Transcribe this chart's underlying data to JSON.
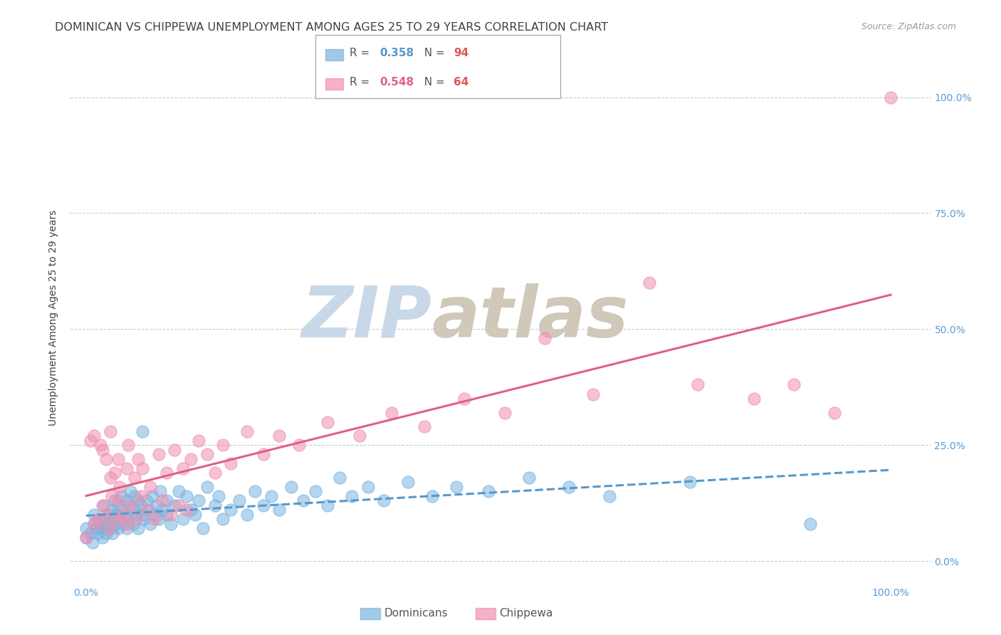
{
  "title": "DOMINICAN VS CHIPPEWA UNEMPLOYMENT AMONG AGES 25 TO 29 YEARS CORRELATION CHART",
  "source": "Source: ZipAtlas.com",
  "ylabel": "Unemployment Among Ages 25 to 29 years",
  "ytick_labels": [
    "0.0%",
    "25.0%",
    "50.0%",
    "75.0%",
    "100.0%"
  ],
  "ytick_values": [
    0.0,
    0.25,
    0.5,
    0.75,
    1.0
  ],
  "xtick_values": [
    0.0,
    0.25,
    0.5,
    0.75,
    1.0
  ],
  "xlim": [
    -0.02,
    1.05
  ],
  "ylim": [
    -0.05,
    1.1
  ],
  "watermark_zip": "ZIP",
  "watermark_atlas": "atlas",
  "dom_R": "0.358",
  "dom_N": "94",
  "chip_R": "0.548",
  "chip_N": "64",
  "dominican_color": "#7ab3e0",
  "chippewa_color": "#f090b0",
  "dom_line_color": "#5599cc",
  "chip_line_color": "#e06080",
  "background_color": "#ffffff",
  "grid_color": "#cccccc",
  "title_color": "#404040",
  "axis_label_color": "#404040",
  "right_tick_color": "#5b9bd5",
  "bottom_tick_color": "#5b9bd5",
  "watermark_zip_color": "#c8d8e8",
  "watermark_atlas_color": "#d0c8b8",
  "title_fontsize": 11.5,
  "source_fontsize": 9,
  "ylabel_fontsize": 10,
  "tick_fontsize": 10,
  "legend_fontsize": 11,
  "dom_label": "Dominicans",
  "chip_label": "Chippewa",
  "dominican_x": [
    0.0,
    0.0,
    0.005,
    0.008,
    0.01,
    0.01,
    0.012,
    0.015,
    0.015,
    0.018,
    0.02,
    0.02,
    0.022,
    0.022,
    0.025,
    0.025,
    0.028,
    0.03,
    0.03,
    0.032,
    0.033,
    0.035,
    0.035,
    0.038,
    0.04,
    0.04,
    0.042,
    0.043,
    0.045,
    0.045,
    0.048,
    0.05,
    0.05,
    0.052,
    0.055,
    0.055,
    0.058,
    0.06,
    0.06,
    0.062,
    0.065,
    0.065,
    0.068,
    0.07,
    0.07,
    0.072,
    0.075,
    0.078,
    0.08,
    0.082,
    0.085,
    0.088,
    0.09,
    0.092,
    0.095,
    0.1,
    0.1,
    0.105,
    0.11,
    0.115,
    0.12,
    0.125,
    0.13,
    0.135,
    0.14,
    0.145,
    0.15,
    0.16,
    0.165,
    0.17,
    0.18,
    0.19,
    0.2,
    0.21,
    0.22,
    0.23,
    0.24,
    0.255,
    0.27,
    0.285,
    0.3,
    0.315,
    0.33,
    0.35,
    0.37,
    0.4,
    0.43,
    0.46,
    0.5,
    0.55,
    0.6,
    0.65,
    0.75,
    0.9
  ],
  "dominican_y": [
    0.05,
    0.07,
    0.06,
    0.04,
    0.08,
    0.1,
    0.07,
    0.06,
    0.09,
    0.08,
    0.07,
    0.05,
    0.09,
    0.12,
    0.08,
    0.06,
    0.1,
    0.07,
    0.09,
    0.11,
    0.06,
    0.13,
    0.08,
    0.1,
    0.07,
    0.12,
    0.09,
    0.14,
    0.08,
    0.11,
    0.1,
    0.07,
    0.13,
    0.09,
    0.12,
    0.15,
    0.08,
    0.11,
    0.14,
    0.1,
    0.13,
    0.07,
    0.12,
    0.1,
    0.28,
    0.09,
    0.13,
    0.11,
    0.08,
    0.14,
    0.1,
    0.12,
    0.09,
    0.15,
    0.11,
    0.1,
    0.13,
    0.08,
    0.12,
    0.15,
    0.09,
    0.14,
    0.11,
    0.1,
    0.13,
    0.07,
    0.16,
    0.12,
    0.14,
    0.09,
    0.11,
    0.13,
    0.1,
    0.15,
    0.12,
    0.14,
    0.11,
    0.16,
    0.13,
    0.15,
    0.12,
    0.18,
    0.14,
    0.16,
    0.13,
    0.17,
    0.14,
    0.16,
    0.15,
    0.18,
    0.16,
    0.14,
    0.17,
    0.08
  ],
  "chippewa_x": [
    0.0,
    0.005,
    0.01,
    0.01,
    0.015,
    0.018,
    0.02,
    0.02,
    0.025,
    0.025,
    0.028,
    0.03,
    0.03,
    0.032,
    0.035,
    0.038,
    0.04,
    0.04,
    0.042,
    0.045,
    0.05,
    0.05,
    0.052,
    0.055,
    0.06,
    0.062,
    0.065,
    0.068,
    0.07,
    0.075,
    0.08,
    0.085,
    0.09,
    0.095,
    0.1,
    0.105,
    0.11,
    0.115,
    0.12,
    0.125,
    0.13,
    0.14,
    0.15,
    0.16,
    0.17,
    0.18,
    0.2,
    0.22,
    0.24,
    0.265,
    0.3,
    0.34,
    0.38,
    0.42,
    0.47,
    0.52,
    0.57,
    0.63,
    0.7,
    0.76,
    0.83,
    0.88,
    0.93,
    1.0
  ],
  "chippewa_y": [
    0.05,
    0.26,
    0.08,
    0.27,
    0.09,
    0.25,
    0.12,
    0.24,
    0.1,
    0.22,
    0.07,
    0.18,
    0.28,
    0.14,
    0.19,
    0.09,
    0.22,
    0.13,
    0.16,
    0.1,
    0.2,
    0.08,
    0.25,
    0.12,
    0.18,
    0.09,
    0.22,
    0.14,
    0.2,
    0.11,
    0.16,
    0.09,
    0.23,
    0.13,
    0.19,
    0.1,
    0.24,
    0.12,
    0.2,
    0.11,
    0.22,
    0.26,
    0.23,
    0.19,
    0.25,
    0.21,
    0.28,
    0.23,
    0.27,
    0.25,
    0.3,
    0.27,
    0.32,
    0.29,
    0.35,
    0.32,
    0.48,
    0.36,
    0.6,
    0.38,
    0.35,
    0.38,
    0.32,
    1.0
  ]
}
